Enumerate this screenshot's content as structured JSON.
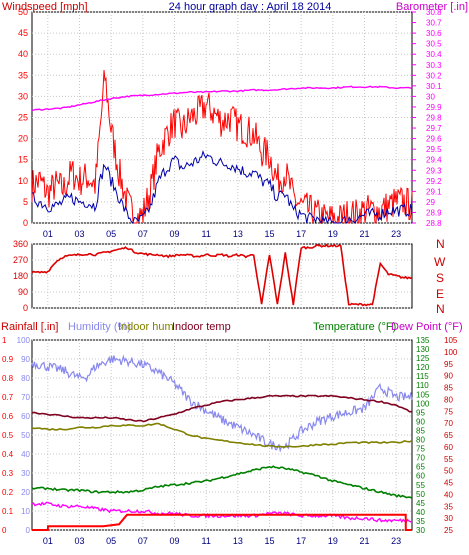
{
  "header": {
    "windspeed_label": "Windspeed [mph]",
    "title": "24 hour graph day : April 18 2014",
    "barometer_label": "Barometer [.in]"
  },
  "lower_labels": {
    "rainfall": "Rainfall [.in]",
    "humidity": "Humidity (%)",
    "indoor_hum": "Indoor hum",
    "indoor_temp": "Indoor temp",
    "temperature": "Temperature (°F)",
    "dewpoint": "Dew Point (°F)"
  },
  "direction_letters": [
    "N",
    "W",
    "S",
    "E",
    "N"
  ],
  "colors": {
    "wind": "#ff0000",
    "wind_avg": "#0000aa",
    "barometer": "#ff00ff",
    "direction": "#dd0000",
    "humidity": "#8888ee",
    "indoor_hum": "#808000",
    "indoor_temp": "#800020",
    "temperature": "#008000",
    "dewpoint": "#ff00ff",
    "rain": "#ff0000",
    "title": "#0000a0",
    "grid": "#c8c8c8"
  },
  "chart_data": [
    {
      "type": "line",
      "title": "24 hour graph day : April 18 2014",
      "x_ticks": [
        "01",
        "03",
        "05",
        "07",
        "09",
        "11",
        "13",
        "15",
        "17",
        "19",
        "21",
        "23"
      ],
      "xlim": [
        0,
        24
      ],
      "ylabel": "Windspeed [mph]",
      "ylim": [
        0,
        50
      ],
      "y_ticks": [
        0,
        5,
        10,
        15,
        20,
        25,
        30,
        35,
        40,
        45,
        50
      ],
      "y2label": "Barometer [.in]",
      "y2lim": [
        28.8,
        30.8
      ],
      "y2_ticks": [
        "28.8",
        "28.9",
        "29",
        "29.1",
        "29.2",
        "29.3",
        "29.4",
        "29.5",
        "29.6",
        "29.7",
        "29.8",
        "29.9",
        "30",
        "30.1",
        "30.2",
        "30.3",
        "30.4",
        "30.5",
        "30.6",
        "30.7",
        "30.8"
      ],
      "series": [
        {
          "role": "gust",
          "x": [
            0,
            0.5,
            1,
            1.5,
            2,
            2.5,
            3,
            3.5,
            4,
            4.3,
            4.6,
            5,
            5.5,
            6,
            6.5,
            7,
            7.5,
            8,
            8.5,
            9,
            9.5,
            10,
            10.5,
            11,
            11.5,
            12,
            12.5,
            13,
            13.5,
            14,
            14.5,
            15,
            15.5,
            16,
            16.5,
            17,
            17.5,
            18,
            18.5,
            19,
            19.5,
            20,
            20.5,
            21,
            21.5,
            22,
            22.5,
            23,
            23.5,
            24
          ],
          "values": [
            9,
            10,
            7,
            9,
            8,
            12,
            10,
            11,
            9,
            22,
            35,
            22,
            12,
            5,
            1,
            2,
            8,
            17,
            21,
            24,
            22,
            25,
            26,
            28,
            26,
            24,
            25,
            23,
            22,
            21,
            17,
            16,
            10,
            12,
            6,
            4,
            3,
            2,
            1,
            1,
            1,
            2,
            2,
            3,
            3,
            3,
            4,
            5,
            5,
            4
          ]
        },
        {
          "role": "average",
          "x": [
            0,
            0.5,
            1,
            1.5,
            2,
            2.5,
            3,
            3.5,
            4,
            4.3,
            4.6,
            5,
            5.5,
            6,
            6.5,
            7,
            7.5,
            8,
            8.5,
            9,
            9.5,
            10,
            10.5,
            11,
            11.5,
            12,
            12.5,
            13,
            13.5,
            14,
            14.5,
            15,
            15.5,
            16,
            16.5,
            17,
            17.5,
            18,
            18.5,
            19,
            19.5,
            20,
            20.5,
            21,
            21.5,
            22,
            22.5,
            23,
            23.5,
            24
          ],
          "values": [
            6,
            5,
            4,
            4,
            5,
            6,
            5,
            5,
            4,
            10,
            14,
            10,
            6,
            2,
            0,
            1,
            4,
            10,
            13,
            15,
            13,
            14,
            15,
            16,
            15,
            14,
            14,
            13,
            12,
            12,
            10,
            9,
            6,
            7,
            3,
            2,
            1,
            1,
            0,
            0,
            0,
            1,
            1,
            2,
            2,
            2,
            3,
            3,
            3,
            3
          ]
        },
        {
          "name": "Barometer",
          "axis": "right",
          "x": [
            0,
            1,
            2,
            3,
            4,
            5,
            6,
            7,
            8,
            9,
            10,
            11,
            12,
            13,
            14,
            15,
            16,
            17,
            18,
            19,
            20,
            21,
            22,
            23,
            24
          ],
          "values": [
            29.87,
            29.88,
            29.89,
            29.92,
            29.95,
            29.98,
            30.0,
            30.01,
            30.02,
            30.03,
            30.04,
            30.04,
            30.05,
            30.05,
            30.06,
            30.06,
            30.07,
            30.08,
            30.08,
            30.08,
            30.09,
            30.09,
            30.09,
            30.08,
            30.08
          ]
        }
      ]
    },
    {
      "type": "line",
      "x_ticks": [
        "01",
        "03",
        "05",
        "07",
        "09",
        "11",
        "13",
        "15",
        "17",
        "19",
        "21",
        "23"
      ],
      "xlim": [
        0,
        24
      ],
      "ylim": [
        0,
        360
      ],
      "y_ticks": [
        0,
        90,
        180,
        270,
        360
      ],
      "series": [
        {
          "role": "direction",
          "x": [
            0,
            0.5,
            1,
            1.5,
            2,
            2.5,
            3,
            3.5,
            4,
            4.5,
            5,
            5.5,
            6,
            6.5,
            7,
            7.5,
            8,
            8.5,
            9,
            9.5,
            10,
            10.5,
            11,
            11.5,
            12,
            12.5,
            13,
            13.5,
            14,
            14.5,
            15,
            15.5,
            16,
            16.5,
            17,
            17.5,
            18,
            18.5,
            19,
            19.5,
            20,
            20.5,
            21,
            21.5,
            22,
            22.5,
            23,
            23.5,
            24
          ],
          "values": [
            200,
            200,
            205,
            260,
            290,
            295,
            300,
            305,
            300,
            310,
            320,
            330,
            340,
            315,
            305,
            300,
            300,
            290,
            295,
            300,
            295,
            290,
            300,
            295,
            300,
            290,
            300,
            290,
            300,
            20,
            300,
            20,
            310,
            20,
            340,
            340,
            350,
            350,
            350,
            350,
            20,
            20,
            20,
            20,
            250,
            190,
            180,
            170,
            170
          ]
        }
      ]
    },
    {
      "type": "line",
      "x_ticks": [
        "01",
        "03",
        "05",
        "07",
        "09",
        "11",
        "13",
        "15",
        "17",
        "19",
        "21",
        "23"
      ],
      "xlim": [
        0,
        24
      ],
      "rain_axis": {
        "label": "Rainfall [.in]",
        "ylim": [
          0,
          1
        ],
        "ticks": [
          "0",
          "0.1",
          "0.2",
          "0.3",
          "0.4",
          "0.5",
          "0.6",
          "0.7",
          "0.8",
          "0.9",
          "1"
        ]
      },
      "humidity_axis": {
        "label": "Humidity (%)",
        "ylim": [
          0,
          100
        ],
        "ticks": [
          0,
          10,
          20,
          30,
          40,
          50,
          60,
          70,
          80,
          90,
          100
        ]
      },
      "temperature_axis": {
        "label": "Temperature (°F)",
        "ylim": [
          30,
          135
        ],
        "ticks": [
          30,
          35,
          40,
          45,
          50,
          55,
          60,
          65,
          70,
          75,
          80,
          85,
          90,
          95,
          100,
          105,
          110,
          115,
          120,
          125,
          130,
          135
        ]
      },
      "dewpoint_axis": {
        "label": "Dew Point (°F)",
        "ylim": [
          25,
          105
        ],
        "ticks": [
          25,
          30,
          35,
          40,
          45,
          50,
          55,
          60,
          65,
          70,
          75,
          80,
          85,
          90,
          95,
          100,
          105
        ]
      },
      "series": [
        {
          "name": "Humidity (%)",
          "axis": "humidity",
          "x": [
            0,
            1,
            2,
            3,
            3.5,
            4,
            5,
            6,
            7,
            8,
            9,
            10,
            11,
            12,
            13,
            14,
            15,
            16,
            17,
            18,
            19,
            20,
            21,
            22,
            23,
            24
          ],
          "values": [
            88,
            86,
            84,
            80,
            81,
            86,
            90,
            89,
            87,
            83,
            77,
            68,
            63,
            58,
            54,
            50,
            45,
            44,
            52,
            57,
            60,
            62,
            64,
            75,
            70,
            70
          ]
        },
        {
          "name": "Indoor hum",
          "axis": "humidity",
          "x": [
            0,
            1,
            2,
            3,
            4,
            5,
            6,
            7,
            8,
            9,
            10,
            11,
            12,
            13,
            14,
            15,
            16,
            17,
            18,
            19,
            20,
            21,
            22,
            23,
            24
          ],
          "values": [
            54,
            53,
            53,
            54,
            54,
            55,
            55,
            55,
            56,
            53,
            50,
            48,
            47,
            46,
            45,
            44,
            44,
            44,
            45,
            45,
            46,
            46,
            46,
            46,
            47
          ]
        },
        {
          "name": "Indoor temp",
          "axis": "temperature",
          "x": [
            0,
            1,
            2,
            3,
            4,
            5,
            6,
            7,
            8,
            9,
            10,
            11,
            12,
            13,
            14,
            15,
            16,
            17,
            18,
            19,
            20,
            21,
            22,
            23,
            24
          ],
          "values": [
            95,
            94,
            93,
            92,
            92,
            92,
            91,
            90,
            92,
            94,
            97,
            99,
            101,
            102,
            103,
            104,
            104,
            104,
            104,
            104,
            103,
            102,
            101,
            99,
            95
          ]
        },
        {
          "name": "Temperature (°F)",
          "axis": "temperature",
          "x": [
            0,
            1,
            2,
            3,
            4,
            5,
            6,
            7,
            8,
            9,
            10,
            11,
            12,
            13,
            14,
            15,
            16,
            17,
            18,
            19,
            20,
            21,
            22,
            23,
            24
          ],
          "values": [
            53,
            53,
            52,
            52,
            51,
            51,
            51,
            52,
            54,
            55,
            56,
            57,
            59,
            61,
            63,
            65,
            64,
            62,
            60,
            57,
            55,
            53,
            51,
            49,
            48
          ]
        },
        {
          "name": "Dew Point (°F)",
          "axis": "dewpoint",
          "x": [
            0,
            1,
            2,
            3,
            4,
            5,
            6,
            7,
            8,
            9,
            10,
            11,
            12,
            13,
            14,
            15,
            16,
            17,
            18,
            19,
            20,
            21,
            22,
            23,
            24
          ],
          "values": [
            36,
            36,
            35,
            35,
            34,
            33,
            33,
            33,
            32,
            32,
            31,
            31,
            31,
            31,
            31,
            32,
            32,
            31,
            31,
            31,
            30,
            30,
            29,
            29,
            29
          ]
        },
        {
          "name": "Rainfall [.in]",
          "axis": "rain",
          "x": [
            0,
            1,
            1.01,
            4.5,
            5.5,
            6,
            7,
            10,
            15,
            20,
            23.6,
            23.61,
            24
          ],
          "values": [
            0,
            0,
            0.02,
            0.02,
            0.03,
            0.08,
            0.08,
            0.08,
            0.08,
            0.08,
            0.08,
            0,
            0
          ]
        }
      ]
    }
  ]
}
